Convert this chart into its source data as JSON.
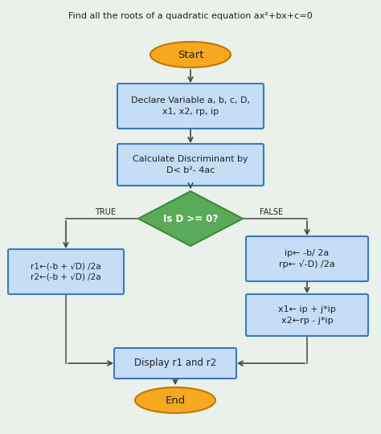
{
  "title": "Find all the roots of a quadratic equation ax²+bx+c=0",
  "bg_color": "#eaf0ea",
  "box_fill": "#c5ddf5",
  "box_edge": "#3a7abf",
  "diamond_fill": "#5aaa5a",
  "diamond_edge": "#3a8a3a",
  "oval_fill": "#f5a820",
  "oval_edge": "#c07800",
  "text_dark": "#222222",
  "arrow_color": "#444444",
  "line_color": "#555555",
  "label_start": "Start",
  "label_declare": "Declare Variable a, b, c, D,\nx1, x2, rp, ip",
  "label_calc": "Calculate Discriminant by\nD< b²- 4ac",
  "label_diamond": "Is D >= 0?",
  "label_true": "r1←(-b + √D) /2a\nr2←(-b + √D) /2a",
  "label_false1": "ip← -b/ 2a\nrp← √-D) /2a",
  "label_false2": "x1← ip + j*ip\nx2←rp - j*ip",
  "label_display": "Display r1 and r2",
  "label_end": "End"
}
